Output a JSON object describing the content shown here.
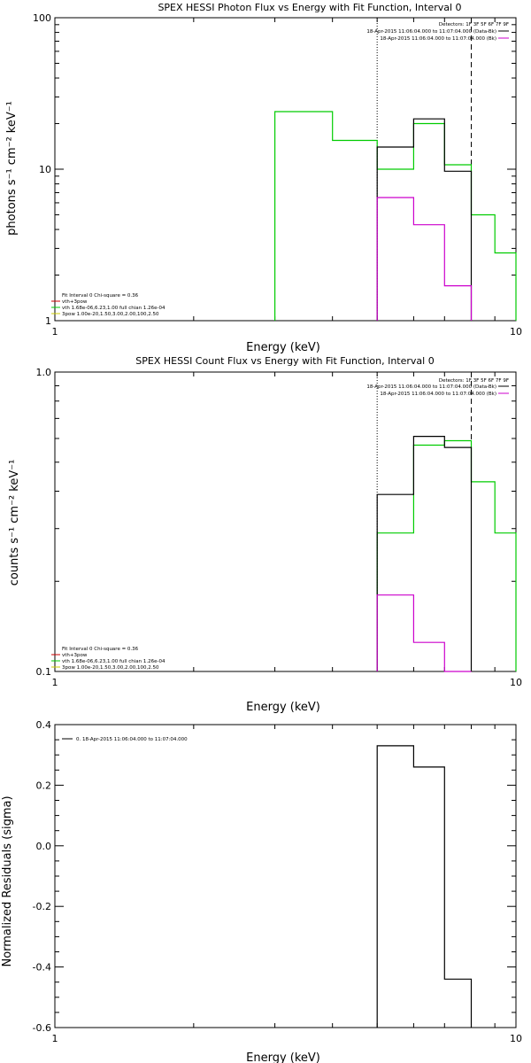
{
  "chart_data": [
    {
      "type": "line",
      "title": "SPEX HESSI Photon Flux vs Energy with Fit Function, Interval 0",
      "xlabel": "Energy (keV)",
      "ylabel": "photons s⁻¹ cm⁻² keV⁻¹",
      "xscale": "log",
      "yscale": "log",
      "xlim": [
        1,
        10
      ],
      "ylim": [
        1,
        100
      ],
      "xticks": [
        {
          "v": 1,
          "label": "1"
        },
        {
          "v": 10,
          "label": "10"
        }
      ],
      "yticks": [
        {
          "v": 1,
          "label": "1"
        },
        {
          "v": 10,
          "label": "10"
        },
        {
          "v": 100,
          "label": "100"
        }
      ],
      "info_lines": [
        {
          "text": "Detectors: 1F 3F 5F 6F 7F 9F",
          "color": ""
        },
        {
          "text": "18-Apr-2015 11:06:04.000 to 11:07:04.000 (Data-Bk)",
          "color": "#000000"
        },
        {
          "text": "18-Apr-2015 11:06:04.000 to 11:07:04.000 (Bk)",
          "color": "#cc00cc"
        }
      ],
      "fit_lines": [
        {
          "text": "Fit Interval 0   Chi-square = 0.36",
          "color": ""
        },
        {
          "text": "vth+3pow",
          "color": "#cc0000"
        },
        {
          "text": "vth 1.68e-06,6.23,1.00  full chian 1.26e-04",
          "color": "#00cc00"
        },
        {
          "text": "3pow 1.00e-20,1.50,3.00,2.00,100,2.50",
          "color": "#cccc00"
        }
      ],
      "vlines": [
        {
          "x": 5.0,
          "style": "dotted"
        },
        {
          "x": 8.0,
          "style": "dashed"
        }
      ],
      "series": [
        {
          "color": "#00cc00",
          "edges": [
            3,
            4,
            5,
            6,
            7,
            8,
            9,
            10
          ],
          "values": [
            24,
            15.5,
            10,
            20,
            10.7,
            5,
            2.8
          ]
        },
        {
          "color": "#000000",
          "edges": [
            5,
            6,
            7,
            8
          ],
          "values": [
            14,
            21.5,
            9.7
          ]
        },
        {
          "color": "#cc00cc",
          "edges": [
            5,
            6,
            7,
            8
          ],
          "values": [
            6.5,
            4.3,
            1.7
          ]
        }
      ]
    },
    {
      "type": "line",
      "title": "SPEX HESSI Count Flux vs Energy with Fit Function, Interval 0",
      "xlabel": "Energy (keV)",
      "ylabel": "counts s⁻¹ cm⁻² keV⁻¹",
      "xscale": "log",
      "yscale": "log",
      "xlim": [
        1,
        10
      ],
      "ylim": [
        0.1,
        1.0
      ],
      "xticks": [
        {
          "v": 1,
          "label": "1"
        },
        {
          "v": 10,
          "label": "10"
        }
      ],
      "yticks": [
        {
          "v": 0.1,
          "label": "0.1"
        },
        {
          "v": 1.0,
          "label": "1.0"
        }
      ],
      "info_lines": [
        {
          "text": "Detectors: 1F 3F 5F 6F 7F 9F",
          "color": ""
        },
        {
          "text": "18-Apr-2015 11:06:04.000 to 11:07:04.000 (Data-Bk)",
          "color": "#000000"
        },
        {
          "text": "18-Apr-2015 11:06:04.000 to 11:07:04.000 (Bk)",
          "color": "#cc00cc"
        }
      ],
      "fit_lines": [
        {
          "text": "Fit Interval 0   Chi-square = 0.36",
          "color": ""
        },
        {
          "text": "vth+3pow",
          "color": "#cc0000"
        },
        {
          "text": "vth 1.68e-06,6.23,1.00  full chian 1.26e-04",
          "color": "#00cc00"
        },
        {
          "text": "3pow 1.00e-20,1.50,3.00,2.00,100,2.50",
          "color": "#cccc00"
        }
      ],
      "vlines": [
        {
          "x": 5.0,
          "style": "dotted"
        },
        {
          "x": 8.0,
          "style": "dashed"
        }
      ],
      "series": [
        {
          "color": "#00cc00",
          "edges": [
            5,
            6,
            7,
            8,
            9,
            10
          ],
          "values": [
            0.29,
            0.57,
            0.59,
            0.43,
            0.29
          ]
        },
        {
          "color": "#000000",
          "edges": [
            5,
            6,
            7,
            8
          ],
          "values": [
            0.39,
            0.61,
            0.56
          ]
        },
        {
          "color": "#cc00cc",
          "edges": [
            5,
            6,
            7,
            8
          ],
          "values": [
            0.18,
            0.125,
            0.1
          ]
        }
      ]
    },
    {
      "type": "line",
      "title": "",
      "xlabel": "Energy (keV)",
      "ylabel": "Normalized Residuals (sigma)",
      "xscale": "log",
      "yscale": "linear",
      "xlim": [
        1,
        10
      ],
      "ylim": [
        -0.6,
        0.4
      ],
      "xticks": [
        {
          "v": 1,
          "label": "1"
        },
        {
          "v": 10,
          "label": "10"
        }
      ],
      "yticks": [
        {
          "v": 0.4,
          "label": "0.4"
        },
        {
          "v": 0.2,
          "label": "0.2"
        },
        {
          "v": 0.0,
          "label": "0.0"
        },
        {
          "v": -0.2,
          "label": "-0.2"
        },
        {
          "v": -0.4,
          "label": "-0.4"
        },
        {
          "v": -0.6,
          "label": "-0.6"
        }
      ],
      "legend": [
        {
          "text": "0. 18-Apr-2015 11:06:04.000 to 11:07:04.000",
          "color": "#000000"
        }
      ],
      "series": [
        {
          "color": "#000000",
          "edges": [
            5,
            6,
            7,
            8
          ],
          "values": [
            0.33,
            0.26,
            -0.44
          ]
        }
      ]
    }
  ]
}
